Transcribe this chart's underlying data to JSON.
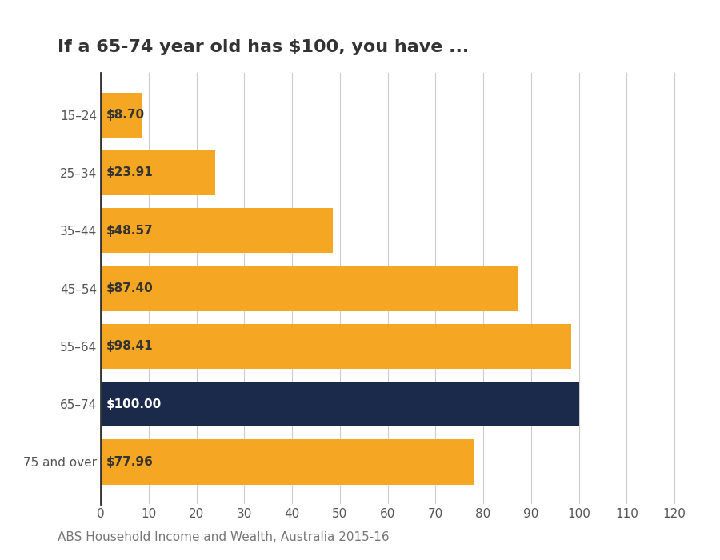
{
  "title": "If a 65-74 year old has $100, you have ...",
  "categories": [
    "15–24",
    "25–34",
    "35–44",
    "45–54",
    "55–64",
    "65–74",
    "75 and over"
  ],
  "values": [
    8.7,
    23.91,
    48.57,
    87.4,
    98.41,
    100.0,
    77.96
  ],
  "labels": [
    "$8.70",
    "$23.91",
    "$48.57",
    "$87.40",
    "$98.41",
    "$100.00",
    "$77.96"
  ],
  "bar_colors": [
    "#F5A623",
    "#F5A623",
    "#F5A623",
    "#F5A623",
    "#F5A623",
    "#1B2A4A",
    "#F5A623"
  ],
  "label_colors": [
    "#333333",
    "#333333",
    "#333333",
    "#333333",
    "#333333",
    "#ffffff",
    "#333333"
  ],
  "xlim": [
    0,
    125
  ],
  "xticks": [
    0,
    10,
    20,
    30,
    40,
    50,
    60,
    70,
    80,
    90,
    100,
    110,
    120
  ],
  "background_color": "#ffffff",
  "title_fontsize": 16,
  "label_fontsize": 11,
  "tick_fontsize": 11,
  "caption": "ABS Household Income and Wealth, Australia 2015-16",
  "caption_fontsize": 11,
  "grid_color": "#cccccc",
  "axis_color": "#333333",
  "bar_height": 0.78
}
